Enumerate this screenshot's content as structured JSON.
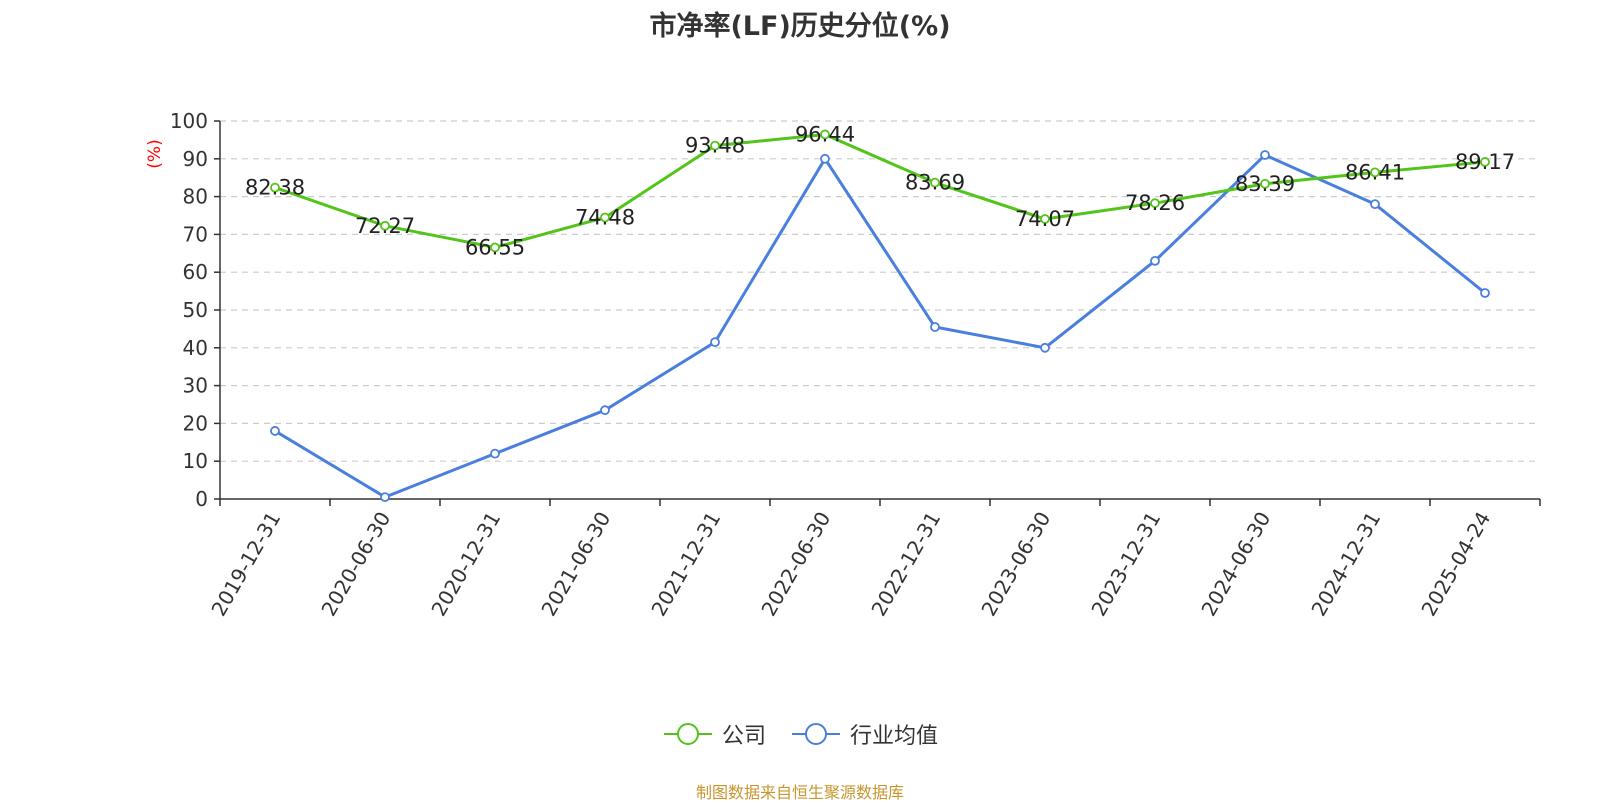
{
  "title": "市净率(LF)历史分位(%)",
  "source": "制图数据来自恒生聚源数据库",
  "chart_data": {
    "type": "line",
    "title": "市净率(LF)历史分位(%)",
    "ylabel": "(%)",
    "ylim": [
      0,
      100
    ],
    "yticks": [
      0,
      10,
      20,
      30,
      40,
      50,
      60,
      70,
      80,
      90,
      100
    ],
    "grid": true,
    "legend_position": "bottom",
    "categories": [
      "2019-12-31",
      "2020-06-30",
      "2020-12-31",
      "2021-06-30",
      "2021-12-31",
      "2022-06-30",
      "2022-12-31",
      "2023-06-30",
      "2023-12-31",
      "2024-06-30",
      "2024-12-31",
      "2025-04-24"
    ],
    "series": [
      {
        "name": "公司",
        "color": "#52c41a",
        "labels": true,
        "values": [
          82.38,
          72.27,
          66.55,
          74.48,
          93.48,
          96.44,
          83.69,
          74.07,
          78.26,
          83.39,
          86.41,
          89.17
        ]
      },
      {
        "name": "行业均值",
        "color": "#4a7fdd",
        "labels": false,
        "values": [
          18,
          0.5,
          12,
          23.5,
          41.5,
          90,
          45.5,
          40,
          63,
          91,
          78,
          54.5
        ]
      }
    ]
  }
}
